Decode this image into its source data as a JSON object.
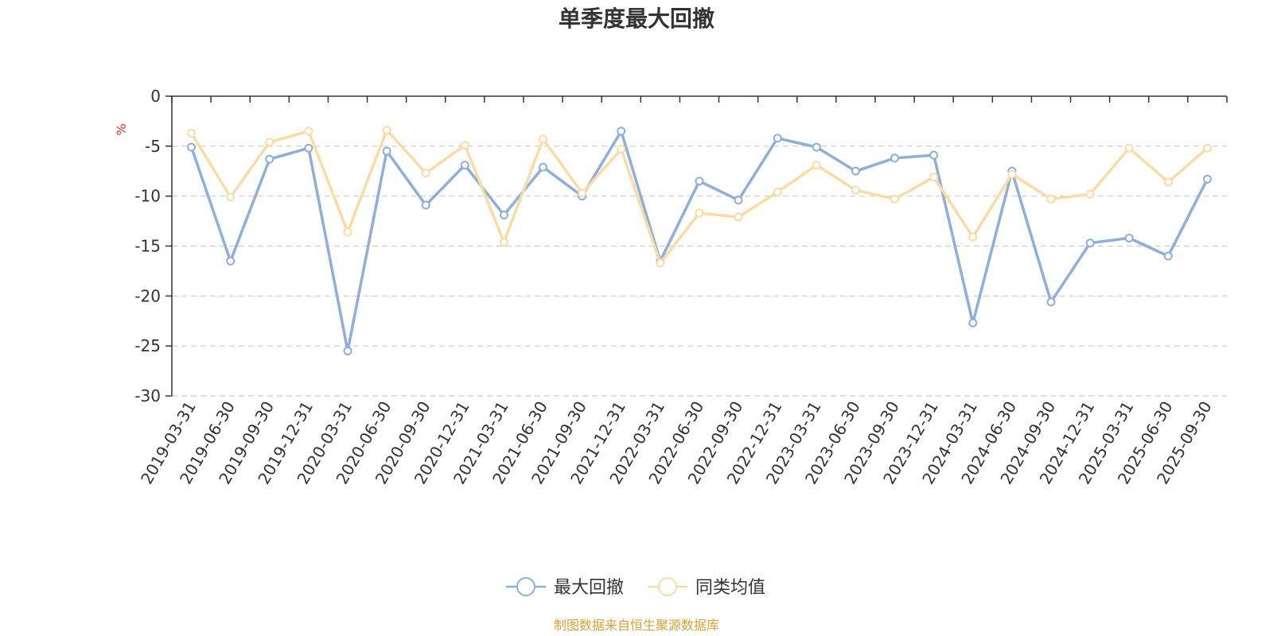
{
  "chart_data": {
    "type": "line",
    "title": "单季度最大回撤",
    "ylabel": "%",
    "ylim": [
      -30,
      0
    ],
    "yticks": [
      0,
      -5,
      -10,
      -15,
      -20,
      -25,
      -30
    ],
    "grid": true,
    "legend_position": "bottom",
    "categories": [
      "2019-03-31",
      "2019-06-30",
      "2019-09-30",
      "2019-12-31",
      "2020-03-31",
      "2020-06-30",
      "2020-09-30",
      "2020-12-31",
      "2021-03-31",
      "2021-06-30",
      "2021-09-30",
      "2021-12-31",
      "2022-03-31",
      "2022-06-30",
      "2022-09-30",
      "2022-12-31",
      "2023-03-31",
      "2023-06-30",
      "2023-09-30",
      "2023-12-31",
      "2024-03-31",
      "2024-06-30",
      "2024-09-30",
      "2024-12-31",
      "2025-03-31",
      "2025-06-30",
      "2025-09-30"
    ],
    "series": [
      {
        "name": "最大回撤",
        "color": "#8eaedb",
        "values": [
          -5.1,
          -16.5,
          -6.3,
          -5.2,
          -25.5,
          -5.5,
          -10.9,
          -6.9,
          -11.9,
          -7.1,
          -10.0,
          -3.5,
          -16.5,
          -8.5,
          -10.4,
          -4.2,
          -5.1,
          -7.5,
          -6.2,
          -5.9,
          -22.7,
          -7.5,
          -20.6,
          -14.7,
          -14.2,
          -16.0,
          -8.3
        ]
      },
      {
        "name": "同类均值",
        "color": "#f9dba3",
        "values": [
          -3.7,
          -10.1,
          -4.6,
          -3.5,
          -13.6,
          -3.4,
          -7.7,
          -4.9,
          -14.6,
          -4.3,
          -9.7,
          -5.3,
          -16.7,
          -11.7,
          -12.1,
          -9.6,
          -6.9,
          -9.4,
          -10.3,
          -8.1,
          -14.1,
          -7.8,
          -10.3,
          -9.8,
          -5.2,
          -8.6,
          -5.2
        ]
      }
    ]
  },
  "source_text": "制图数据来自恒生聚源数据库",
  "colors": {
    "axis": "#333333",
    "grid": "#cccccc",
    "unit": "#e03030",
    "source": "#d4a23a"
  }
}
